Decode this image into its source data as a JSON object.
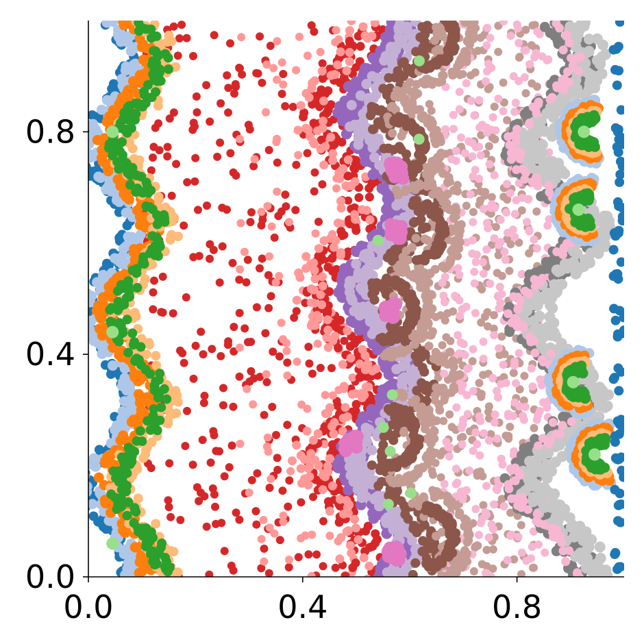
{
  "chart_data": {
    "type": "scatter",
    "title": "",
    "xlabel": "",
    "ylabel": "",
    "xlim": [
      0.0,
      1.0
    ],
    "ylim": [
      0.0,
      1.0
    ],
    "xticks": [
      0.0,
      0.4,
      0.8
    ],
    "xtick_labels": [
      "0.0",
      "0.4",
      "0.8"
    ],
    "yticks": [
      0.0,
      0.4,
      0.8
    ],
    "ytick_labels": [
      "0.0",
      "0.4",
      "0.8"
    ],
    "grid": false,
    "legend": "none",
    "series_colors": {
      "red": "#d62728",
      "salmon": "#ff9896",
      "purple": "#9467bd",
      "lavender": "#c5b0d5",
      "brown": "#8c564b",
      "tan": "#c49c94",
      "pink": "#e377c2",
      "light_pink": "#f7b6d2",
      "gray": "#7f7f7f",
      "light_gray": "#c7c7c7",
      "blue": "#1f77b4",
      "light_blue": "#aec7e8",
      "orange": "#ff7f0e",
      "light_orange": "#ffbb78",
      "green": "#2ca02c",
      "light_green": "#98df8a"
    }
  }
}
